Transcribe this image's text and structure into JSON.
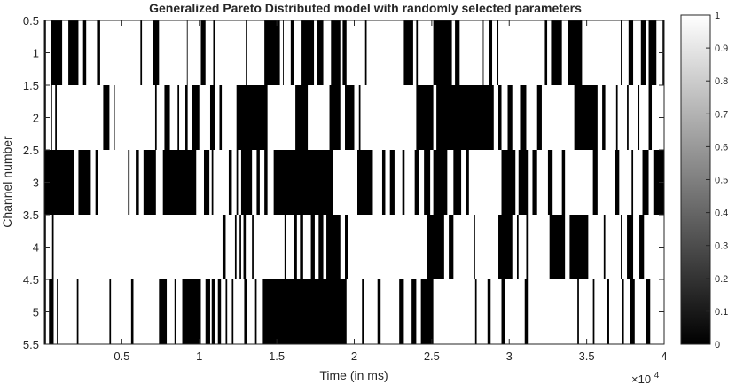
{
  "chart_data": {
    "type": "heatmap",
    "title": "Generalized Pareto Distributed model with randomly selected parameters",
    "xlabel": "Time (in ms)",
    "ylabel": "Channel number",
    "x_exponent_label": "×10",
    "x_exponent_power": "4",
    "xlim": [
      0,
      40000
    ],
    "ylim": [
      0.5,
      5.5
    ],
    "y_direction": "reversed",
    "xticks": [
      5000,
      10000,
      15000,
      20000,
      25000,
      30000,
      35000,
      40000
    ],
    "xtick_labels": [
      "0.5",
      "1",
      "1.5",
      "2",
      "2.5",
      "3",
      "3.5",
      "4"
    ],
    "yticks": [
      0.5,
      1,
      1.5,
      2,
      2.5,
      3,
      3.5,
      4,
      4.5,
      5,
      5.5
    ],
    "ytick_labels": [
      "0.5",
      "1",
      "1.5",
      "2",
      "2.5",
      "3",
      "3.5",
      "4",
      "4.5",
      "5",
      "5.5"
    ],
    "colormap": "gray",
    "color_limits": [
      0,
      1
    ],
    "colorbar_ticks": [
      0,
      0.1,
      0.2,
      0.3,
      0.4,
      0.5,
      0.6,
      0.7,
      0.8,
      0.9,
      1
    ],
    "colorbar_labels": [
      "0",
      "0.1",
      "0.2",
      "0.3",
      "0.4",
      "0.5",
      "0.6",
      "0.7",
      "0.8",
      "0.9",
      "1"
    ],
    "channels": [
      {
        "channel": 1,
        "busy_intervals": [
          [
            0,
            100
          ],
          [
            400,
            1150
          ],
          [
            1550,
            2200
          ],
          [
            2500,
            2700
          ],
          [
            3400,
            3600
          ],
          [
            6200,
            6300
          ],
          [
            7000,
            7400
          ],
          [
            9200,
            9250
          ],
          [
            10100,
            10400
          ],
          [
            10900,
            11000
          ],
          [
            13000,
            13050
          ],
          [
            14200,
            15200
          ],
          [
            15400,
            15450
          ],
          [
            15900,
            16100
          ],
          [
            16600,
            17400
          ],
          [
            17600,
            18000
          ],
          [
            18500,
            19100
          ],
          [
            19250,
            19500
          ],
          [
            20700,
            20800
          ],
          [
            23200,
            23800
          ],
          [
            24000,
            24100
          ],
          [
            25100,
            26300
          ],
          [
            26500,
            26800
          ],
          [
            28300,
            28350
          ],
          [
            28700,
            28900
          ],
          [
            29200,
            29300
          ],
          [
            32300,
            32450
          ],
          [
            32700,
            33400
          ],
          [
            33800,
            34700
          ],
          [
            37200,
            37300
          ],
          [
            37700,
            38000
          ],
          [
            38500,
            38800
          ],
          [
            39000,
            39500
          ],
          [
            39900,
            40000
          ]
        ]
      },
      {
        "channel": 2,
        "busy_intervals": [
          [
            0,
            100
          ],
          [
            400,
            500
          ],
          [
            700,
            800
          ],
          [
            3800,
            4200
          ],
          [
            4500,
            4550
          ],
          [
            7150,
            7250
          ],
          [
            7750,
            8100
          ],
          [
            8600,
            8700
          ],
          [
            9100,
            9250
          ],
          [
            9500,
            10000
          ],
          [
            10700,
            11000
          ],
          [
            11300,
            11450
          ],
          [
            12400,
            14400
          ],
          [
            16200,
            17000
          ],
          [
            18400,
            19100
          ],
          [
            19400,
            20000
          ],
          [
            20300,
            20400
          ],
          [
            24000,
            25100
          ],
          [
            25300,
            29000
          ],
          [
            29300,
            29500
          ],
          [
            29900,
            30200
          ],
          [
            30700,
            31100
          ],
          [
            31800,
            32100
          ],
          [
            34200,
            35700
          ],
          [
            36000,
            36200
          ],
          [
            36900,
            37000
          ],
          [
            37600,
            37700
          ],
          [
            38300,
            38400
          ],
          [
            39000,
            39200
          ]
        ]
      },
      {
        "channel": 3,
        "busy_intervals": [
          [
            0,
            1900
          ],
          [
            2200,
            3000
          ],
          [
            3300,
            3450
          ],
          [
            5400,
            5500
          ],
          [
            5900,
            6100
          ],
          [
            6400,
            7200
          ],
          [
            7650,
            9800
          ],
          [
            10300,
            10650
          ],
          [
            10800,
            10900
          ],
          [
            11900,
            12100
          ],
          [
            12400,
            12500
          ],
          [
            12700,
            13400
          ],
          [
            13700,
            13900
          ],
          [
            14200,
            14400
          ],
          [
            14800,
            18600
          ],
          [
            20200,
            21200
          ],
          [
            21800,
            22000
          ],
          [
            22300,
            22600
          ],
          [
            23100,
            23250
          ],
          [
            23900,
            24200
          ],
          [
            24500,
            24900
          ],
          [
            25100,
            26000
          ],
          [
            26400,
            26900
          ],
          [
            27200,
            27400
          ],
          [
            29500,
            30400
          ],
          [
            30600,
            31200
          ],
          [
            31500,
            31800
          ],
          [
            32500,
            32800
          ],
          [
            33400,
            33600
          ],
          [
            35400,
            35700
          ],
          [
            36800,
            37100
          ],
          [
            37900,
            38000
          ],
          [
            38600,
            39000
          ],
          [
            39300,
            40000
          ]
        ]
      },
      {
        "channel": 4,
        "busy_intervals": [
          [
            0,
            100
          ],
          [
            500,
            600
          ],
          [
            11500,
            11700
          ],
          [
            12300,
            12400
          ],
          [
            12600,
            12700
          ],
          [
            12850,
            13000
          ],
          [
            13400,
            13500
          ],
          [
            15500,
            15600
          ],
          [
            16100,
            16300
          ],
          [
            16500,
            16700
          ],
          [
            17200,
            17450
          ],
          [
            17700,
            18000
          ],
          [
            18200,
            19100
          ],
          [
            19400,
            19600
          ],
          [
            24700,
            25800
          ],
          [
            26100,
            26400
          ],
          [
            27700,
            27800
          ],
          [
            29300,
            30200
          ],
          [
            30500,
            30600
          ],
          [
            31100,
            31200
          ],
          [
            32600,
            33600
          ],
          [
            33900,
            35100
          ],
          [
            36100,
            36200
          ],
          [
            37200,
            37300
          ],
          [
            37600,
            38000
          ],
          [
            38400,
            38700
          ]
        ]
      },
      {
        "channel": 5,
        "busy_intervals": [
          [
            0,
            100
          ],
          [
            300,
            600
          ],
          [
            800,
            850
          ],
          [
            2100,
            2200
          ],
          [
            4200,
            4300
          ],
          [
            5600,
            5750
          ],
          [
            7400,
            7900
          ],
          [
            8400,
            8500
          ],
          [
            8900,
            10100
          ],
          [
            10400,
            10700
          ],
          [
            10800,
            11000
          ],
          [
            11200,
            11400
          ],
          [
            11700,
            11800
          ],
          [
            12100,
            12200
          ],
          [
            12900,
            13050
          ],
          [
            13600,
            13700
          ],
          [
            14100,
            19500
          ],
          [
            20500,
            20650
          ],
          [
            21500,
            21700
          ],
          [
            22900,
            23200
          ],
          [
            23700,
            24000
          ],
          [
            24300,
            25100
          ],
          [
            27800,
            27900
          ],
          [
            28600,
            28800
          ],
          [
            29500,
            29700
          ],
          [
            31000,
            31200
          ],
          [
            34400,
            34500
          ],
          [
            35400,
            35500
          ],
          [
            36300,
            36450
          ],
          [
            37300,
            37400
          ],
          [
            37800,
            38100
          ],
          [
            38800,
            39100
          ]
        ]
      }
    ]
  }
}
